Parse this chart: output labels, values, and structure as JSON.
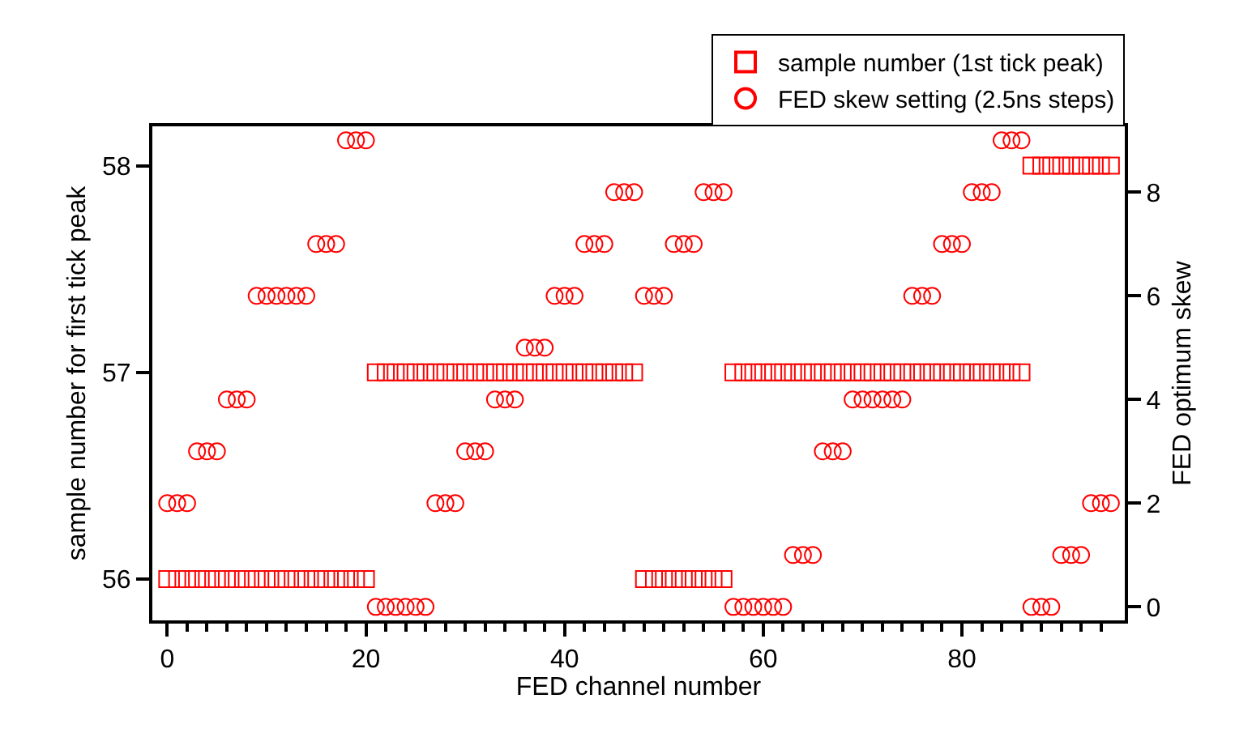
{
  "chart_data": {
    "type": "scatter",
    "xlabel": "FED channel number",
    "ylabel": "sample number for first tick peak",
    "y2label": "FED optimum skew",
    "x": [
      0,
      1,
      2,
      3,
      4,
      5,
      6,
      7,
      8,
      9,
      10,
      11,
      12,
      13,
      14,
      15,
      16,
      17,
      18,
      19,
      20,
      21,
      22,
      23,
      24,
      25,
      26,
      27,
      28,
      29,
      30,
      31,
      32,
      33,
      34,
      35,
      36,
      37,
      38,
      39,
      40,
      41,
      42,
      43,
      44,
      45,
      46,
      47,
      48,
      49,
      50,
      51,
      52,
      53,
      54,
      55,
      56,
      57,
      58,
      59,
      60,
      61,
      62,
      63,
      64,
      65,
      66,
      67,
      68,
      69,
      70,
      71,
      72,
      73,
      74,
      75,
      76,
      77,
      78,
      79,
      80,
      81,
      82,
      83,
      84,
      85,
      86,
      87,
      88,
      89,
      90,
      91,
      92,
      93,
      94,
      95
    ],
    "series": [
      {
        "name": "sample number (1st tick peak)",
        "color": "#ff0000",
        "marker": "square",
        "values": [
          56,
          56,
          56,
          56,
          56,
          56,
          56,
          56,
          56,
          56,
          56,
          56,
          56,
          56,
          56,
          56,
          56,
          56,
          56,
          56,
          56,
          57,
          57,
          57,
          57,
          57,
          57,
          57,
          57,
          57,
          57,
          57,
          57,
          57,
          57,
          57,
          57,
          57,
          57,
          57,
          57,
          57,
          57,
          57,
          57,
          57,
          57,
          57,
          56,
          56,
          56,
          56,
          56,
          56,
          56,
          56,
          56,
          57,
          57,
          57,
          57,
          57,
          57,
          57,
          57,
          57,
          57,
          57,
          57,
          57,
          57,
          57,
          57,
          57,
          57,
          57,
          57,
          57,
          57,
          57,
          57,
          57,
          57,
          57,
          57,
          57,
          57,
          58,
          58,
          58,
          58,
          58,
          58,
          58,
          58,
          58
        ]
      },
      {
        "name": "FED skew setting (2.5ns steps)",
        "color": "#ff0000",
        "marker": "circle",
        "axis": "y2",
        "values": [
          2,
          2,
          2,
          3,
          3,
          3,
          4,
          4,
          4,
          6,
          6,
          6,
          6,
          6,
          6,
          7,
          7,
          7,
          9,
          9,
          9,
          0,
          0,
          0,
          0,
          0,
          0,
          2,
          2,
          2,
          3,
          3,
          3,
          4,
          4,
          4,
          5,
          5,
          5,
          6,
          6,
          6,
          7,
          7,
          7,
          8,
          8,
          8,
          6,
          6,
          6,
          7,
          7,
          7,
          8,
          8,
          8,
          0,
          0,
          0,
          0,
          0,
          0,
          1,
          1,
          1,
          3,
          3,
          3,
          4,
          4,
          4,
          4,
          4,
          4,
          6,
          6,
          6,
          7,
          7,
          7,
          8,
          8,
          8,
          9,
          9,
          9,
          0,
          0,
          0,
          1,
          1,
          1,
          2,
          2,
          2
        ]
      }
    ],
    "xlim": [
      -1.5,
      96.4
    ],
    "xticks": [
      0,
      {
        "value": 2,
        "label": null
      },
      {
        "value": 4,
        "label": null
      },
      {
        "value": 6,
        "label": null
      },
      {
        "value": 8,
        "label": null
      },
      {
        "value": 10,
        "label": null
      },
      {
        "value": 12,
        "label": null
      },
      {
        "value": 14,
        "label": null
      },
      {
        "value": 16,
        "label": null
      },
      {
        "value": 18,
        "label": null
      },
      20,
      {
        "value": 22,
        "label": null
      },
      {
        "value": 24,
        "label": null
      },
      {
        "value": 26,
        "label": null
      },
      {
        "value": 28,
        "label": null
      },
      {
        "value": 30,
        "label": null
      },
      {
        "value": 32,
        "label": null
      },
      {
        "value": 34,
        "label": null
      },
      {
        "value": 36,
        "label": null
      },
      {
        "value": 38,
        "label": null
      },
      40,
      {
        "value": 42,
        "label": null
      },
      {
        "value": 44,
        "label": null
      },
      {
        "value": 46,
        "label": null
      },
      {
        "value": 48,
        "label": null
      },
      {
        "value": 50,
        "label": null
      },
      {
        "value": 52,
        "label": null
      },
      {
        "value": 54,
        "label": null
      },
      {
        "value": 56,
        "label": null
      },
      {
        "value": 58,
        "label": null
      },
      60,
      {
        "value": 62,
        "label": null
      },
      {
        "value": 64,
        "label": null
      },
      {
        "value": 66,
        "label": null
      },
      {
        "value": 68,
        "label": null
      },
      {
        "value": 70,
        "label": null
      },
      {
        "value": 72,
        "label": null
      },
      {
        "value": 74,
        "label": null
      },
      {
        "value": 76,
        "label": null
      },
      {
        "value": 78,
        "label": null
      },
      80,
      {
        "value": 82,
        "label": null
      },
      {
        "value": 84,
        "label": null
      },
      {
        "value": 86,
        "label": null
      },
      {
        "value": 88,
        "label": null
      },
      {
        "value": 90,
        "label": null
      },
      {
        "value": 92,
        "label": null
      },
      {
        "value": 94,
        "label": null
      }
    ],
    "ylim": [
      55.8,
      58.19
    ],
    "yticks": [
      56,
      57,
      58
    ],
    "y2lim": [
      -0.26,
      9.27
    ],
    "y2ticks": [
      0,
      2,
      4,
      6,
      8
    ],
    "legend": "top right"
  }
}
